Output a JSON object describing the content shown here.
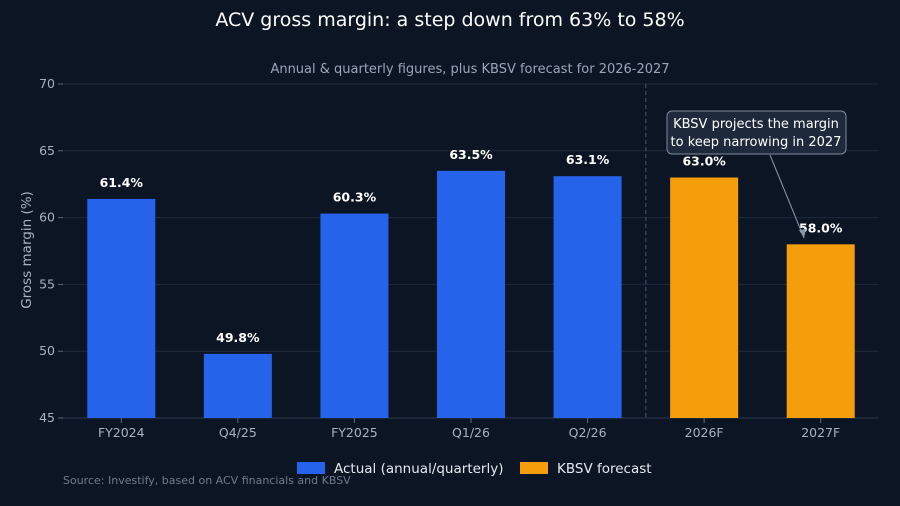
{
  "chart_data": {
    "type": "bar",
    "title": "ACV gross margin: a step down from 63% to 58%",
    "subtitle": "Annual & quarterly figures, plus KBSV forecast for 2026-2027",
    "ylabel": "Gross margin (%)",
    "xlabel": "",
    "ylim": [
      45,
      70
    ],
    "yticks": [
      45,
      50,
      55,
      60,
      65,
      70
    ],
    "grid": true,
    "categories": [
      "FY2024",
      "Q4/25",
      "FY2025",
      "Q1/26",
      "Q2/26",
      "2026F",
      "2027F"
    ],
    "values": [
      61.4,
      49.8,
      60.3,
      63.5,
      63.1,
      63.0,
      58.0
    ],
    "value_labels": [
      "61.4%",
      "49.8%",
      "60.3%",
      "63.5%",
      "63.1%",
      "63.0%",
      "58.0%"
    ],
    "kinds": [
      "actual",
      "actual",
      "actual",
      "actual",
      "actual",
      "forecast",
      "forecast"
    ],
    "series": [
      {
        "name": "Actual (annual/quarterly)",
        "color": "#2563eb"
      },
      {
        "name": "KBSV forecast",
        "color": "#f59e0b"
      }
    ],
    "legend_position": "bottom-center",
    "divider_between": [
      "Q2/26",
      "2026F"
    ],
    "annotation": {
      "lines": [
        "KBSV projects the margin",
        "to keep narrowing in 2027"
      ],
      "target_category": "2027F"
    },
    "source": "Source: Investify, based on ACV financials and KBSV"
  }
}
